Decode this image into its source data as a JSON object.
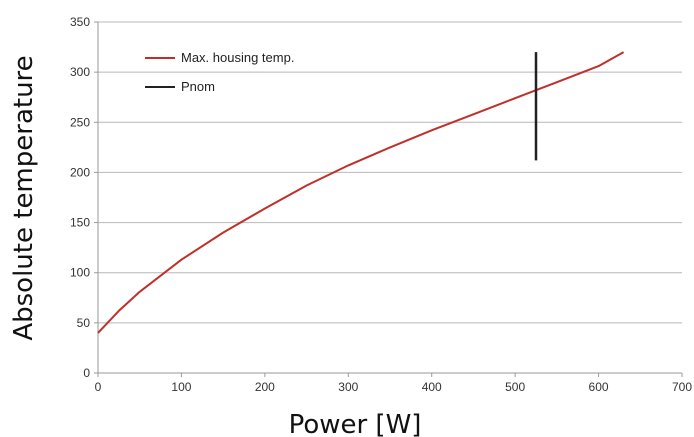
{
  "chart_data": {
    "type": "line",
    "title": "",
    "xlabel": "Power [W]",
    "ylabel": "Absolute temperature",
    "xlim": [
      0,
      700
    ],
    "ylim": [
      0,
      350
    ],
    "xticks": [
      "0",
      "100",
      "200",
      "300",
      "400",
      "500",
      "600",
      "700"
    ],
    "yticks": [
      "0",
      "50",
      "100",
      "150",
      "200",
      "250",
      "300",
      "350"
    ],
    "grid": "horizontal",
    "legend_position": "top-left",
    "series": [
      {
        "name": "Max. housing temp.",
        "color": "#c0302a",
        "x": [
          0,
          25,
          50,
          100,
          150,
          200,
          250,
          300,
          350,
          400,
          450,
          500,
          550,
          600,
          630
        ],
        "y": [
          40,
          62,
          81,
          113,
          140,
          164,
          187,
          207,
          225,
          242,
          258,
          274,
          290,
          306,
          320
        ]
      },
      {
        "name": "Pnom",
        "color": "#222222",
        "x": [
          525,
          525
        ],
        "y": [
          212,
          320
        ]
      }
    ]
  }
}
